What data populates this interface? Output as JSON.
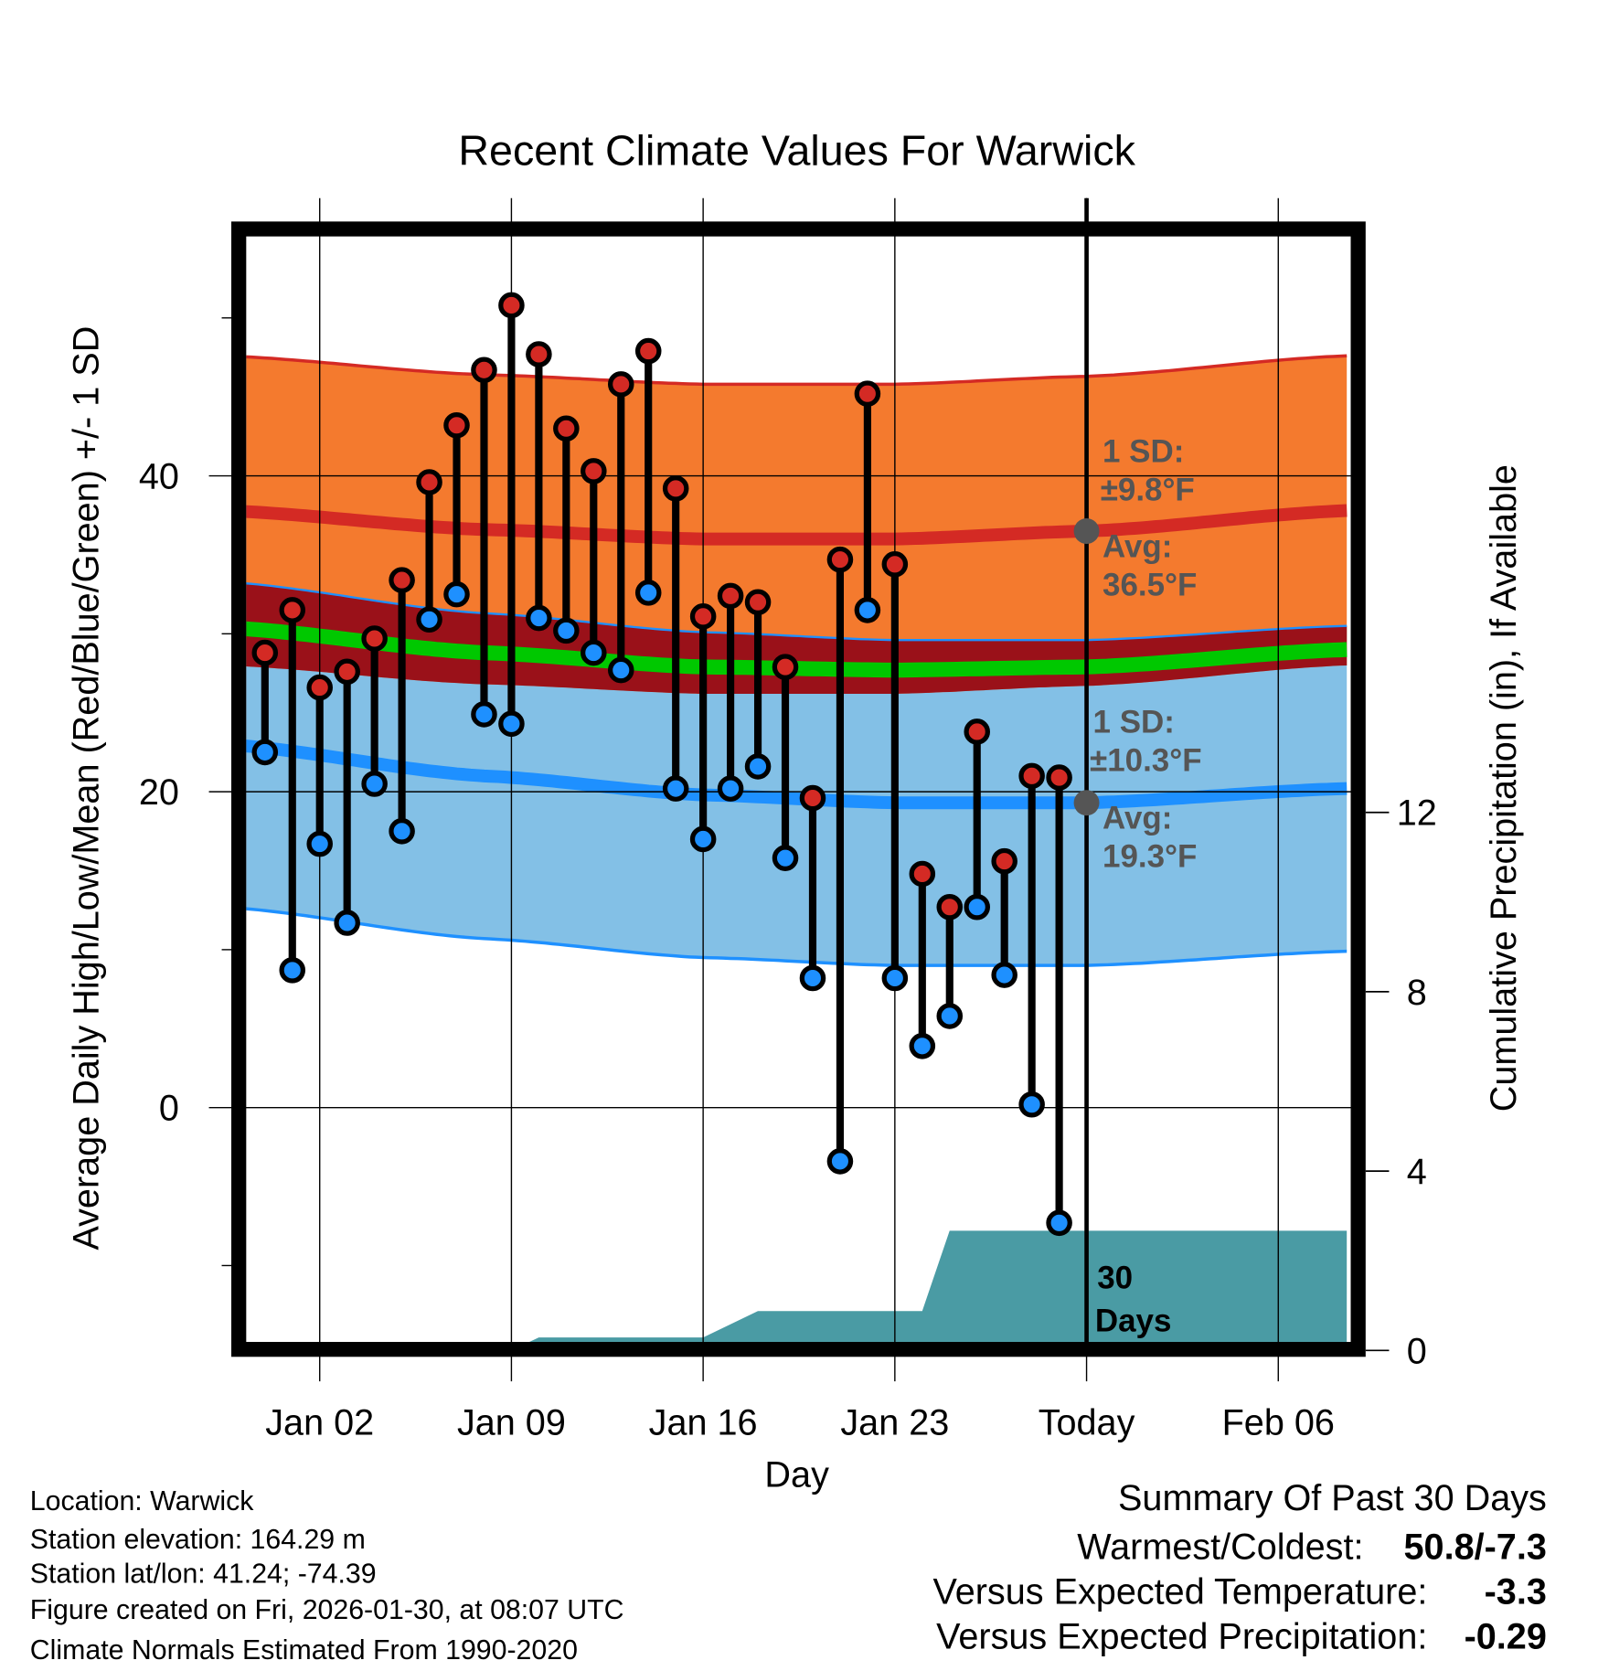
{
  "chart_data": {
    "type": "line",
    "title": "Recent Climate Values For Warwick",
    "xlabel": "Day",
    "ylabel": "Average Daily High/Low/Mean (Red/Blue/Green) +/- 1 SD",
    "y2label": "Cumulative Precipitation (in), If Available",
    "ylim": [
      -15,
      55
    ],
    "y2lim": [
      0,
      12.5
    ],
    "yticks": [
      "0",
      "20",
      "40"
    ],
    "y2ticks": [
      "0",
      "4",
      "8",
      "12"
    ],
    "xticks": [
      {
        "day": 2,
        "label": "Jan 02"
      },
      {
        "day": 9,
        "label": "Jan 09"
      },
      {
        "day": 16,
        "label": "Jan 16"
      },
      {
        "day": 23,
        "label": "Jan 23"
      },
      {
        "day": 30,
        "label": "Today"
      },
      {
        "day": 37,
        "label": "Feb 06"
      }
    ],
    "days": [
      0,
      1,
      2,
      3,
      4,
      5,
      6,
      7,
      8,
      9,
      10,
      11,
      12,
      13,
      14,
      15,
      16,
      17,
      18,
      19,
      20,
      21,
      22,
      23,
      24,
      25,
      26,
      27,
      28,
      29
    ],
    "highs": [
      28.8,
      31.5,
      26.6,
      27.6,
      29.7,
      33.4,
      39.6,
      43.2,
      46.7,
      50.8,
      47.7,
      43.0,
      40.3,
      45.8,
      47.9,
      39.2,
      31.1,
      32.4,
      32.0,
      27.9,
      19.6,
      34.7,
      45.2,
      34.4,
      14.8,
      12.7,
      23.8,
      15.6,
      21.0,
      20.9
    ],
    "lows": [
      22.5,
      8.7,
      16.7,
      11.7,
      20.5,
      17.5,
      30.9,
      32.5,
      24.9,
      24.3,
      31.0,
      30.2,
      28.8,
      27.7,
      32.6,
      20.2,
      17.0,
      20.2,
      21.6,
      15.8,
      8.2,
      -3.4,
      31.5,
      8.2,
      3.9,
      5.8,
      12.7,
      8.4,
      0.2,
      -7.3
    ],
    "normals": {
      "days": [
        -1.5,
        8,
        16,
        23,
        30,
        39.5
      ],
      "high_mean": [
        37.8,
        36.6,
        36.0,
        36.0,
        36.5,
        37.8
      ],
      "low_mean": [
        23.0,
        21.0,
        19.8,
        19.3,
        19.3,
        20.2
      ],
      "mean": [
        30.4,
        28.8,
        27.9,
        27.7,
        27.9,
        29.0
      ],
      "high_sd": 9.8,
      "low_sd": 10.3
    },
    "precip": {
      "days": [
        -1.5,
        9,
        10,
        16,
        18,
        24,
        25,
        39.5
      ],
      "values": [
        0,
        0,
        0.29,
        0.29,
        0.88,
        0.88,
        2.67,
        2.67
      ]
    },
    "today_day": 30,
    "annotations": {
      "high_sd_label": "1 SD:",
      "high_sd_value": "±9.8°F",
      "high_avg_label": "Avg:",
      "high_avg_value": "36.5°F",
      "low_sd_label": "1 SD:",
      "low_sd_value": "±10.3°F",
      "low_avg_label": "Avg:",
      "low_avg_value": "19.3°F",
      "high_avg": 36.5,
      "low_avg": 19.3,
      "period_label_1": "30",
      "period_label_2": "Days"
    },
    "colors": {
      "high_band": "#F47A2E",
      "overlap_band": "#9A1119",
      "high_line": "#D42A24",
      "low_band": "#83C0E6",
      "low_line": "#1E90FF",
      "mean_line": "#00C800",
      "precip": "#4A9BA4",
      "today_marker": "#555555"
    }
  },
  "footer": {
    "location": "Location: Warwick",
    "elevation": "Station elevation: 164.29 m",
    "latlon": "Station lat/lon: 41.24; -74.39",
    "created": "Figure created on Fri, 2026-01-30, at 08:07 UTC",
    "normals": "Climate Normals Estimated From 1990-2020"
  },
  "summary": {
    "title": "Summary Of Past 30 Days",
    "warm_cold_label": "Warmest/Coldest:",
    "warm_cold_value": "50.8/-7.3",
    "temp_label": "Versus Expected Temperature:",
    "temp_value": "-3.3",
    "temp_color": "#1E90FF",
    "precip_label": "Versus Expected Precipitation:",
    "precip_value": "-0.29",
    "precip_color": "#A0522D"
  }
}
